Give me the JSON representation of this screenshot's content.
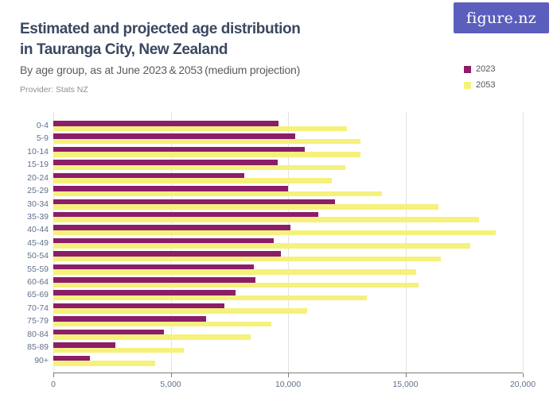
{
  "header": {
    "title_line1": "Estimated and projected age distribution",
    "title_line2": "in Tauranga City, New Zealand",
    "subtitle": "By age group, as at June 2023 & 2053 (medium projection)",
    "provider": "Provider: Stats NZ"
  },
  "logo": {
    "text": "figure.nz",
    "bg_color": "#5B5EBD",
    "text_color": "#FFFFFF"
  },
  "colors": {
    "series_2023": "#8B1D69",
    "series_2053": "#F5F17C",
    "title_text": "#3A4861",
    "axis_text": "#60708C",
    "gridline": "#E4E4E4",
    "axis_line": "#7D7D7D"
  },
  "chart_data": {
    "type": "bar",
    "orientation": "horizontal",
    "title": "Estimated and projected age distribution in Tauranga City, New Zealand",
    "subtitle": "By age group, as at June 2023 & 2053 (medium projection)",
    "categories": [
      "0-4",
      "5-9",
      "10-14",
      "15-19",
      "20-24",
      "25-29",
      "30-34",
      "35-39",
      "40-44",
      "45-49",
      "50-54",
      "55-59",
      "60-64",
      "65-69",
      "70-74",
      "75-79",
      "80-84",
      "85-89",
      "90+"
    ],
    "series": [
      {
        "name": "2023",
        "color": "#8B1D69",
        "values": [
          9600,
          10300,
          10700,
          9550,
          8150,
          10000,
          12000,
          11300,
          10100,
          9400,
          9700,
          8550,
          8600,
          7750,
          7300,
          6500,
          4700,
          2650,
          1550
        ]
      },
      {
        "name": "2053",
        "color": "#F5F17C",
        "values": [
          12500,
          13100,
          13100,
          12450,
          11850,
          14000,
          16400,
          18150,
          18850,
          17750,
          16500,
          15450,
          15550,
          13350,
          10800,
          9300,
          8400,
          5550,
          4350
        ]
      }
    ],
    "xlim": [
      0,
      20000
    ],
    "x_ticks": [
      0,
      5000,
      10000,
      15000,
      20000
    ],
    "x_tick_labels": [
      "0",
      "5,000",
      "10,000",
      "15,000",
      "20,000"
    ],
    "grid": "vertical-gridlines",
    "legend_position": "top-right"
  }
}
